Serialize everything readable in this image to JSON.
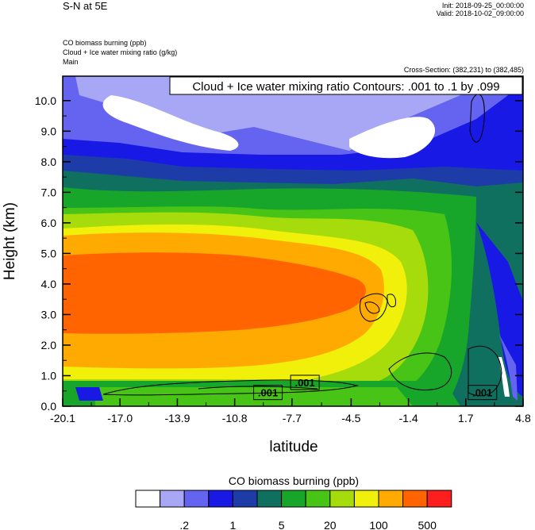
{
  "header": {
    "title": "S-N at 5E",
    "init": "Init: 2018-09-25_00:00:00",
    "valid": "Valid: 2018-10-02_09:00:00",
    "desc_fill": "CO biomass burning   (ppb)",
    "desc_contour": "Cloud + Ice water mixing ratio   (g/kg)",
    "desc_domain": "Main",
    "cross_section": "Cross-Section: (382,231) to (382,485)"
  },
  "chart_data": {
    "type": "heatmap",
    "xlabel": "latitude",
    "ylabel": "Height (km)",
    "xlim": [
      -20.1,
      4.8
    ],
    "ylim": [
      0.0,
      10.8
    ],
    "xticks": [
      "-20.1",
      "-17.0",
      "-13.9",
      "-10.8",
      "-7.7",
      "-4.5",
      "-1.4",
      "1.7",
      "4.8"
    ],
    "xtick_values": [
      -20.1,
      -17.0,
      -13.9,
      -10.8,
      -7.7,
      -4.5,
      -1.4,
      1.7,
      4.8
    ],
    "yticks": [
      "0.0",
      "1.0",
      "2.0",
      "3.0",
      "4.0",
      "5.0",
      "6.0",
      "7.0",
      "8.0",
      "9.0",
      "10.0"
    ],
    "ytick_values": [
      0,
      1,
      2,
      3,
      4,
      5,
      6,
      7,
      8,
      9,
      10
    ],
    "contour_title": "Cloud + Ice water mixing ratio Contours: .001 to .1 by .099",
    "contour_labels": [
      {
        "text": ".001",
        "x": -9.0,
        "y": 0.45
      },
      {
        "text": ".001",
        "x": -7.0,
        "y": 0.78
      },
      {
        "text": ".001",
        "x": 2.6,
        "y": 0.45
      }
    ],
    "colorbar": {
      "title": "CO biomass burning  (ppb)",
      "colors": [
        "#ffffff",
        "#a7a7f5",
        "#6464f0",
        "#1919e6",
        "#1e3ca8",
        "#0f7060",
        "#17a62a",
        "#48c416",
        "#a6dc0b",
        "#f0f00a",
        "#ffaa00",
        "#ff6400",
        "#ff1e1e"
      ],
      "labels": [
        ".2",
        "1",
        "5",
        "20",
        "100",
        "500"
      ]
    }
  }
}
